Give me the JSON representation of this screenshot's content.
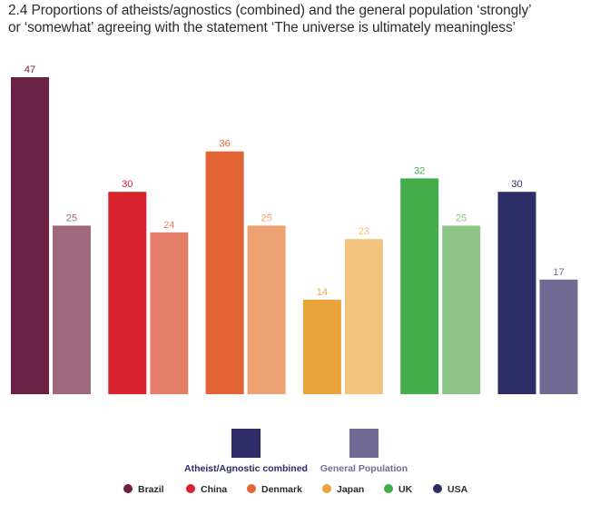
{
  "title": {
    "line1": "2.4 Proportions of atheists/agnostics (combined) and the general population ‘strongly’",
    "line2": "or ‘somewhat’ agreeing with the statement ‘The universe is ultimately meaningless’"
  },
  "chart_data": {
    "type": "bar",
    "categories": [
      "Brazil",
      "China",
      "Denmark",
      "Japan",
      "UK",
      "USA"
    ],
    "series": [
      {
        "name": "Atheist/Agnostic combined",
        "values": [
          47,
          30,
          36,
          14,
          32,
          30
        ],
        "colors": [
          "#6b2145",
          "#d8232f",
          "#e36434",
          "#eba33b",
          "#43ad4b",
          "#2c2c66"
        ]
      },
      {
        "name": "General Population",
        "values": [
          25,
          24,
          25,
          23,
          25,
          17
        ],
        "colors": [
          "#a0687c",
          "#e67f67",
          "#eea172",
          "#f3c47e",
          "#8cc486",
          "#716a94"
        ]
      }
    ],
    "label_colors": [
      "#6b2145",
      "#d8232f",
      "#e36434",
      "#eba33b",
      "#43ad4b",
      "#2c2c66"
    ],
    "series_legend": {
      "swatch_colors": [
        "#2c2c66",
        "#716a94"
      ],
      "text_colors": [
        "#2c2c66",
        "#716a94"
      ]
    },
    "ylim": [
      0,
      47
    ],
    "grid": false,
    "legend_placement": "bottom"
  }
}
